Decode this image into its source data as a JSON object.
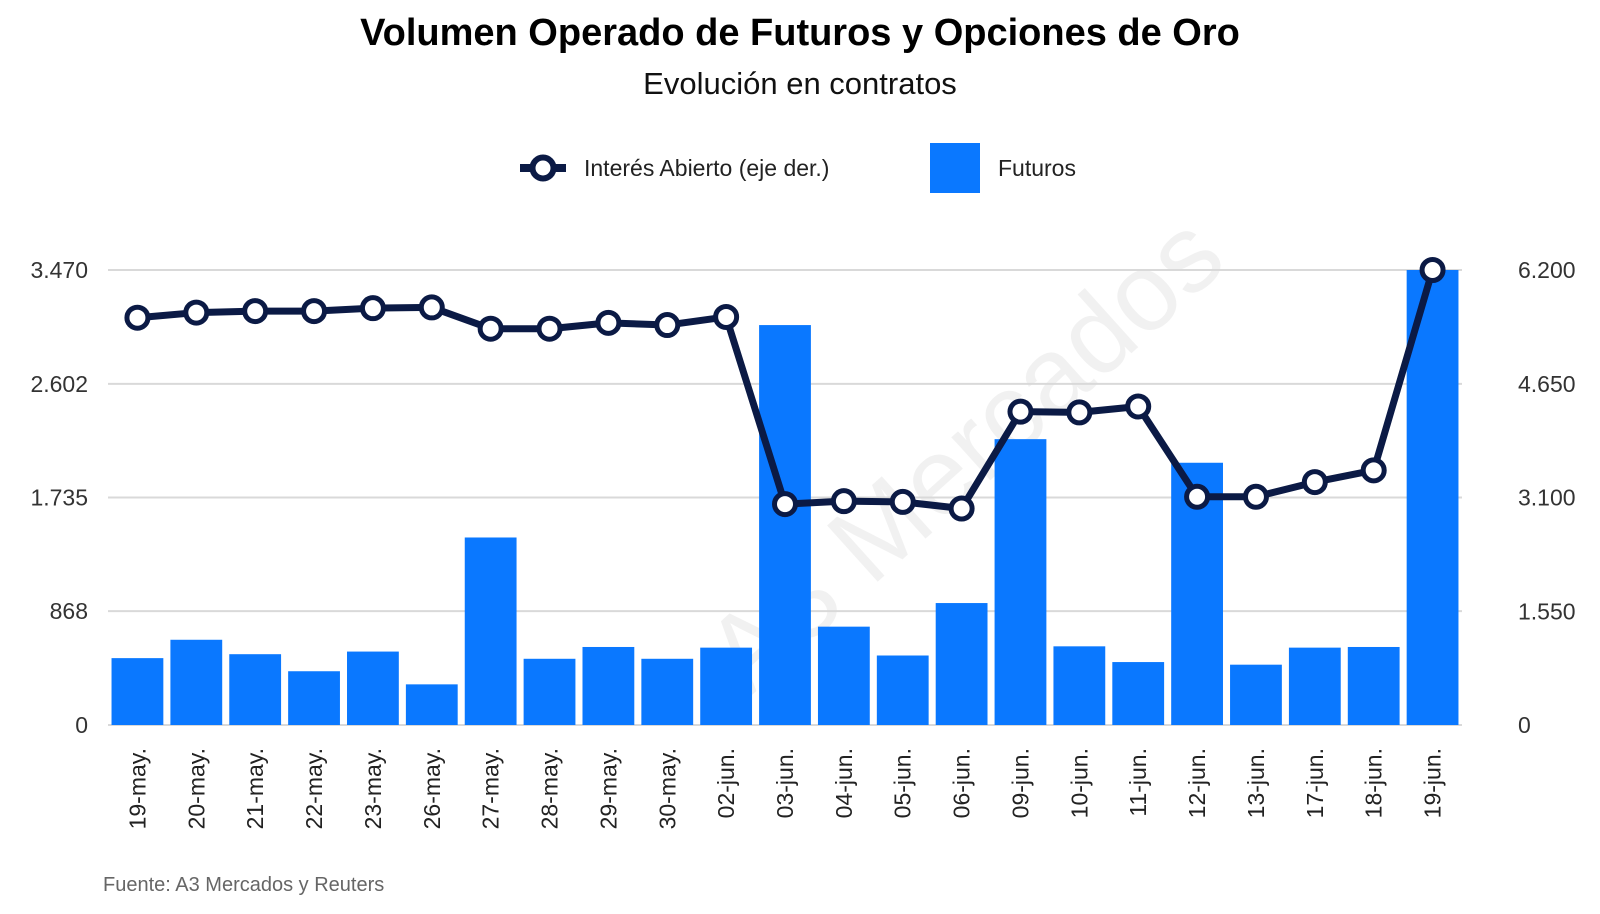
{
  "title": "Volumen Operado de Futuros y Opciones de Oro",
  "subtitle": "Evolución en contratos",
  "source": "Fuente: A3 Mercados y Reuters",
  "watermark": "A3 Mercados",
  "colors": {
    "bar": "#0a78ff",
    "line": "#0b1a45",
    "grid": "#d9d9d9",
    "marker_fill": "#ffffff"
  },
  "legend": {
    "line_label": "Interés Abierto (eje der.)",
    "bar_label": "Futuros"
  },
  "chart_data": {
    "type": "bar",
    "categories": [
      "19-may.",
      "20-may.",
      "21-may.",
      "22-may.",
      "23-may.",
      "26-may.",
      "27-may.",
      "28-may.",
      "29-may.",
      "30-may.",
      "02-jun.",
      "03-jun.",
      "04-jun.",
      "05-jun.",
      "06-jun.",
      "09-jun.",
      "10-jun.",
      "11-jun.",
      "12-jun.",
      "13-jun.",
      "17-jun.",
      "18-jun.",
      "19-jun."
    ],
    "series": [
      {
        "name": "Futuros",
        "type": "bar",
        "axis": "left",
        "values": [
          510,
          650,
          540,
          410,
          560,
          310,
          1430,
          505,
          595,
          505,
          590,
          3050,
          750,
          530,
          930,
          2180,
          600,
          480,
          2000,
          460,
          590,
          595,
          3470
        ]
      },
      {
        "name": "Interés Abierto (eje der.)",
        "type": "line",
        "axis": "right",
        "values": [
          5550,
          5620,
          5640,
          5640,
          5680,
          5690,
          5400,
          5400,
          5480,
          5450,
          5560,
          3010,
          3050,
          3040,
          2950,
          4270,
          4260,
          4340,
          3110,
          3110,
          3310,
          3470,
          6200
        ]
      }
    ],
    "y_left": {
      "ylim": [
        0,
        3470
      ],
      "ticks": [
        "0",
        "868",
        "1.735",
        "2.602",
        "3.470"
      ],
      "tick_values": [
        0,
        868,
        1735,
        2602,
        3470
      ]
    },
    "y_right": {
      "ylim": [
        0,
        6200
      ],
      "ticks": [
        "0",
        "1.550",
        "3.100",
        "4.650",
        "6.200"
      ],
      "tick_values": [
        0,
        1550,
        3100,
        4650,
        6200
      ]
    },
    "grid": true,
    "legend_position": "top"
  }
}
